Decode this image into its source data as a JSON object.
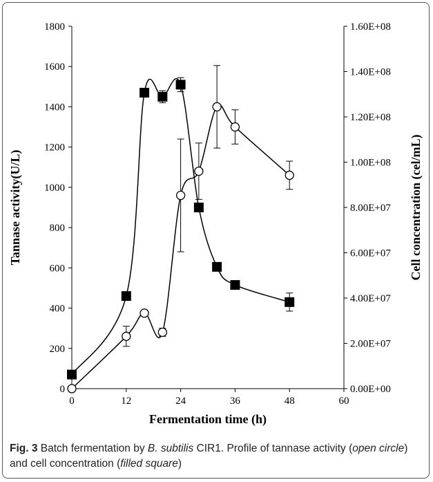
{
  "chart_data": {
    "type": "line",
    "title": "",
    "xlabel": "Fermentation time (h)",
    "ylabel": "Tannase activity(U/L)",
    "y2label": "Cell concentration (cel/mL)",
    "xlim": [
      0,
      60
    ],
    "ylim": [
      0,
      1800
    ],
    "y2lim": [
      0,
      160000000
    ],
    "x_ticks": [
      0,
      12,
      24,
      36,
      48,
      60
    ],
    "x_tick_labels": [
      "0",
      "12",
      "24",
      "36",
      "48",
      "60"
    ],
    "y_ticks": [
      0,
      200,
      400,
      600,
      800,
      1000,
      1200,
      1400,
      1600,
      1800
    ],
    "y_tick_labels": [
      "0",
      "200",
      "400",
      "600",
      "800",
      "1000",
      "1200",
      "1400",
      "1600",
      "1800"
    ],
    "y2_ticks": [
      0,
      20000000,
      40000000,
      60000000,
      80000000,
      100000000,
      120000000,
      140000000,
      160000000
    ],
    "y2_tick_labels": [
      "0.00E+00",
      "2.00E+07",
      "4.00E+07",
      "6.00E+07",
      "8.00E+07",
      "1.00E+08",
      "1.20E+08",
      "1.40E+08",
      "1.60E+08"
    ],
    "grid": false,
    "series": [
      {
        "marker": "open-circle",
        "axis": "left",
        "x": [
          0,
          12,
          16,
          20,
          24,
          28,
          32,
          36,
          48
        ],
        "y": [
          0,
          260,
          375,
          280,
          960,
          1080,
          1400,
          1300,
          1060
        ],
        "err": [
          0,
          50,
          0,
          20,
          280,
          140,
          205,
          85,
          70
        ]
      },
      {
        "marker": "filled-square",
        "axis": "left",
        "x": [
          0,
          12,
          16,
          20,
          24,
          28,
          32,
          36,
          48
        ],
        "y": [
          70,
          460,
          1470,
          1450,
          1510,
          900,
          605,
          515,
          430
        ],
        "err": [
          0,
          0,
          0,
          30,
          35,
          0,
          0,
          20,
          45
        ]
      }
    ]
  },
  "caption": {
    "fig_label": "Fig. 3",
    "part1": "  Batch fermentation by ",
    "species": "B. subtilis",
    "part2": " CIR1. Profile of tannase activity (",
    "open_circle": "open circle",
    "part3": ") and cell concentration (",
    "filled_square": "filled square",
    "part4": ")"
  }
}
